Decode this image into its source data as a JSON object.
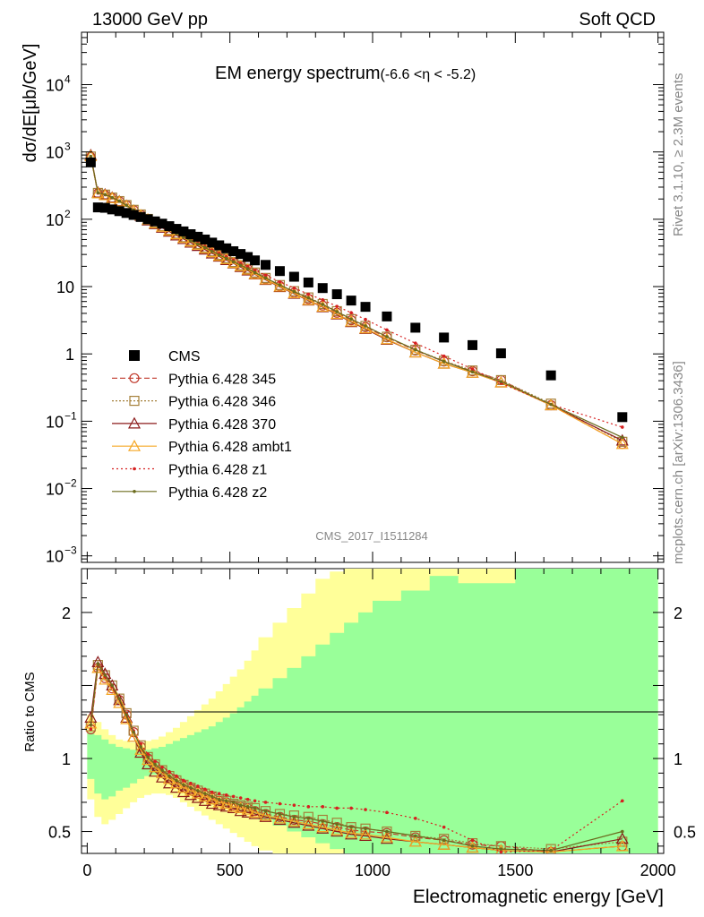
{
  "header": {
    "left_title": "13000 GeV pp",
    "right_title": "Soft QCD",
    "plot_title": "EM energy spectrum",
    "plot_title_range": "(-6.6 <η < -5.2)",
    "side_label_top": "Rivet 3.1.10, ≥ 2.3M events",
    "side_label_bottom": "mcplots.cern.ch [arXiv:1306.3436]",
    "watermark": "CMS_2017_I1511284"
  },
  "axes": {
    "main_ylabel": "dσ/dE[μb/GeV]",
    "ratio_ylabel": "Ratio to CMS",
    "xlabel": "Electromagnetic energy [GeV]",
    "x_ticks": [
      "0",
      "500",
      "1000",
      "1500",
      "2000"
    ],
    "main_y_ticks": [
      {
        "base": "10",
        "exp": "4",
        "v": 10000
      },
      {
        "base": "10",
        "exp": "3",
        "v": 1000
      },
      {
        "base": "10",
        "exp": "2",
        "v": 100
      },
      {
        "base": "10",
        "exp": "",
        "v": 10
      },
      {
        "base": "1",
        "exp": "",
        "v": 1
      },
      {
        "base": "10",
        "exp": "−1",
        "v": 0.1
      },
      {
        "base": "10",
        "exp": "−2",
        "v": 0.01
      },
      {
        "base": "10",
        "exp": "−3",
        "v": 0.001
      }
    ],
    "ratio_y_ticks": [
      {
        "label": "2",
        "v": 2
      },
      {
        "label": "1",
        "v": 1
      },
      {
        "label": "0.5",
        "v": 0.5
      }
    ]
  },
  "colors": {
    "cms": "#000000",
    "p345": "#c0392b",
    "p346": "#a5803a",
    "p370": "#8b1a1a",
    "ambt1": "#f5a623",
    "z1": "#d62020",
    "z2": "#6b6b1e",
    "band_inner": "#99ff99",
    "band_outer": "#ffff99"
  },
  "chart_data": {
    "type": "line",
    "xlim": [
      -20,
      2020
    ],
    "main_ylim_log": [
      0.0008,
      60000
    ],
    "ratio_ylim": [
      0.35,
      2.3
    ],
    "x": [
      12.5,
      37.5,
      62.5,
      87.5,
      112.5,
      137.5,
      162.5,
      187.5,
      212.5,
      237.5,
      262.5,
      287.5,
      312.5,
      337.5,
      362.5,
      387.5,
      412.5,
      437.5,
      462.5,
      487.5,
      512.5,
      537.5,
      562.5,
      587.5,
      625,
      675,
      725,
      775,
      825,
      875,
      925,
      975,
      1050,
      1150,
      1250,
      1350,
      1450,
      1625,
      1875
    ],
    "edges": [
      0,
      25,
      50,
      75,
      100,
      125,
      150,
      175,
      200,
      225,
      250,
      275,
      300,
      325,
      350,
      375,
      400,
      425,
      450,
      475,
      500,
      525,
      550,
      575,
      600,
      650,
      700,
      750,
      800,
      850,
      900,
      950,
      1000,
      1100,
      1200,
      1300,
      1400,
      1500,
      1750,
      2000
    ],
    "cms": [
      700,
      150,
      148,
      140,
      132,
      124,
      116,
      108,
      100,
      93,
      86,
      79,
      72,
      66,
      60,
      55,
      50,
      45,
      41,
      37,
      33.5,
      30.5,
      27.5,
      24.5,
      21,
      17,
      14,
      11.5,
      9.5,
      7.7,
      6.2,
      5.0,
      3.6,
      2.45,
      1.75,
      1.35,
      1.02,
      0.48,
      0.115
    ],
    "band_inner": {
      "up": [
        1.18,
        1.16,
        1.13,
        1.1,
        1.08,
        1.07,
        1.06,
        1.06,
        1.06,
        1.07,
        1.08,
        1.1,
        1.12,
        1.14,
        1.16,
        1.18,
        1.2,
        1.22,
        1.25,
        1.28,
        1.31,
        1.35,
        1.39,
        1.43,
        1.48,
        1.55,
        1.62,
        1.7,
        1.78,
        1.86,
        1.93,
        2.0,
        2.08,
        2.15,
        2.25,
        2.2,
        2.2,
        2.35,
        2.35
      ],
      "down": [
        0.86,
        0.76,
        0.72,
        0.74,
        0.78,
        0.8,
        0.83,
        0.86,
        0.88,
        0.89,
        0.89,
        0.88,
        0.86,
        0.84,
        0.82,
        0.8,
        0.78,
        0.76,
        0.74,
        0.72,
        0.7,
        0.68,
        0.65,
        0.62,
        0.58,
        0.54,
        0.5,
        0.46,
        0.42,
        0.38,
        0.35,
        0.35,
        0.35,
        0.35,
        0.35,
        0.35,
        0.35,
        0.35,
        0.35
      ]
    },
    "band_outer": {
      "up": [
        1.3,
        1.25,
        1.2,
        1.16,
        1.13,
        1.12,
        1.11,
        1.11,
        1.12,
        1.13,
        1.15,
        1.18,
        1.21,
        1.25,
        1.29,
        1.33,
        1.37,
        1.41,
        1.46,
        1.51,
        1.56,
        1.61,
        1.67,
        1.74,
        1.83,
        1.93,
        2.03,
        2.13,
        2.23,
        2.28,
        2.32,
        2.35,
        2.35,
        2.35,
        2.35,
        2.35,
        2.35,
        2.35,
        2.35
      ],
      "down": [
        0.72,
        0.6,
        0.55,
        0.58,
        0.62,
        0.66,
        0.7,
        0.73,
        0.75,
        0.76,
        0.76,
        0.75,
        0.73,
        0.7,
        0.67,
        0.64,
        0.61,
        0.58,
        0.55,
        0.52,
        0.49,
        0.46,
        0.43,
        0.4,
        0.37,
        0.35,
        0.35,
        0.35,
        0.35,
        0.35,
        0.35,
        0.35,
        0.35,
        0.35,
        0.35,
        0.35,
        0.35,
        0.35,
        0.35
      ]
    },
    "series": [
      {
        "name": "Pythia 6.428 345",
        "key": "p345",
        "marker": "circle",
        "dash": "6,3",
        "ratio": [
          1.2,
          1.62,
          1.55,
          1.48,
          1.4,
          1.3,
          1.18,
          1.08,
          1.0,
          0.95,
          0.91,
          0.87,
          0.84,
          0.81,
          0.79,
          0.77,
          0.75,
          0.73,
          0.71,
          0.7,
          0.68,
          0.67,
          0.66,
          0.64,
          0.62,
          0.6,
          0.58,
          0.57,
          0.55,
          0.53,
          0.51,
          0.5,
          0.49,
          0.46,
          0.44,
          0.41,
          0.4,
          0.36,
          0.4
        ]
      },
      {
        "name": "Pythia 6.428 346",
        "key": "p346",
        "marker": "square",
        "dash": "2,2",
        "ratio": [
          1.22,
          1.64,
          1.57,
          1.5,
          1.41,
          1.31,
          1.19,
          1.09,
          1.01,
          0.96,
          0.92,
          0.88,
          0.85,
          0.82,
          0.8,
          0.78,
          0.76,
          0.74,
          0.72,
          0.71,
          0.69,
          0.68,
          0.67,
          0.66,
          0.64,
          0.62,
          0.61,
          0.6,
          0.58,
          0.56,
          0.53,
          0.52,
          0.5,
          0.47,
          0.45,
          0.42,
          0.4,
          0.38,
          0.43
        ]
      },
      {
        "name": "Pythia 6.428 370",
        "key": "p370",
        "marker": "triangle",
        "dash": "",
        "ratio": [
          1.28,
          1.66,
          1.58,
          1.5,
          1.4,
          1.28,
          1.15,
          1.04,
          0.96,
          0.91,
          0.87,
          0.83,
          0.8,
          0.77,
          0.75,
          0.73,
          0.71,
          0.69,
          0.68,
          0.67,
          0.66,
          0.64,
          0.63,
          0.62,
          0.6,
          0.58,
          0.56,
          0.54,
          0.52,
          0.5,
          0.48,
          0.47,
          0.45,
          0.43,
          0.41,
          0.39,
          0.37,
          0.36,
          0.45
        ]
      },
      {
        "name": "Pythia 6.428 ambt1",
        "key": "ambt1",
        "marker": "triangle",
        "dash": "",
        "ratio": [
          1.24,
          1.62,
          1.54,
          1.47,
          1.38,
          1.27,
          1.15,
          1.06,
          0.99,
          0.94,
          0.9,
          0.86,
          0.83,
          0.8,
          0.78,
          0.76,
          0.74,
          0.72,
          0.7,
          0.69,
          0.67,
          0.66,
          0.65,
          0.63,
          0.61,
          0.59,
          0.57,
          0.55,
          0.53,
          0.51,
          0.49,
          0.48,
          0.46,
          0.43,
          0.41,
          0.39,
          0.37,
          0.36,
          0.4
        ]
      },
      {
        "name": "Pythia 6.428 z1",
        "key": "z1",
        "marker": "dot",
        "dash": "2,3",
        "ratio": [
          1.2,
          1.63,
          1.56,
          1.49,
          1.41,
          1.31,
          1.19,
          1.1,
          1.03,
          0.98,
          0.94,
          0.91,
          0.88,
          0.85,
          0.83,
          0.81,
          0.79,
          0.77,
          0.76,
          0.75,
          0.74,
          0.73,
          0.72,
          0.71,
          0.7,
          0.69,
          0.68,
          0.67,
          0.67,
          0.66,
          0.66,
          0.65,
          0.63,
          0.59,
          0.53,
          0.44,
          0.36,
          0.37,
          0.71
        ]
      },
      {
        "name": "Pythia 6.428 z2",
        "key": "z2",
        "marker": "dot",
        "dash": "",
        "ratio": [
          1.23,
          1.65,
          1.57,
          1.5,
          1.41,
          1.3,
          1.18,
          1.08,
          1.01,
          0.96,
          0.92,
          0.88,
          0.85,
          0.82,
          0.8,
          0.78,
          0.76,
          0.74,
          0.72,
          0.71,
          0.7,
          0.68,
          0.67,
          0.66,
          0.64,
          0.62,
          0.6,
          0.59,
          0.57,
          0.55,
          0.53,
          0.52,
          0.5,
          0.47,
          0.44,
          0.4,
          0.38,
          0.37,
          0.5
        ]
      }
    ],
    "legend": [
      "CMS",
      "Pythia 6.428 345",
      "Pythia 6.428 346",
      "Pythia 6.428 370",
      "Pythia 6.428 ambt1",
      "Pythia 6.428 z1",
      "Pythia 6.428 z2"
    ]
  }
}
